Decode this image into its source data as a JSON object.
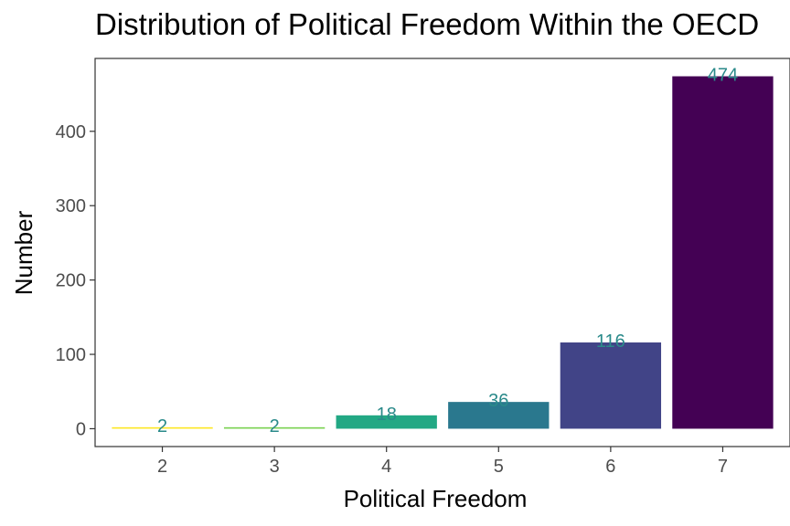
{
  "chart_data": {
    "type": "bar",
    "title": "Distribution of Political Freedom Within the OECD",
    "xlabel": "Political Freedom",
    "ylabel": "Number",
    "categories": [
      "2",
      "3",
      "4",
      "5",
      "6",
      "7"
    ],
    "values": [
      2,
      2,
      18,
      36,
      116,
      474
    ],
    "data_labels": [
      "2",
      "2",
      "18",
      "36",
      "116",
      "474"
    ],
    "bar_colors": [
      "#FDE725",
      "#7AD151",
      "#22A884",
      "#2A788E",
      "#414487",
      "#440154"
    ],
    "label_color": "#2A8A8A",
    "y_ticks": [
      0,
      100,
      200,
      300,
      400
    ],
    "ylim": [
      -24,
      498
    ],
    "grid": false,
    "legend": "none"
  }
}
